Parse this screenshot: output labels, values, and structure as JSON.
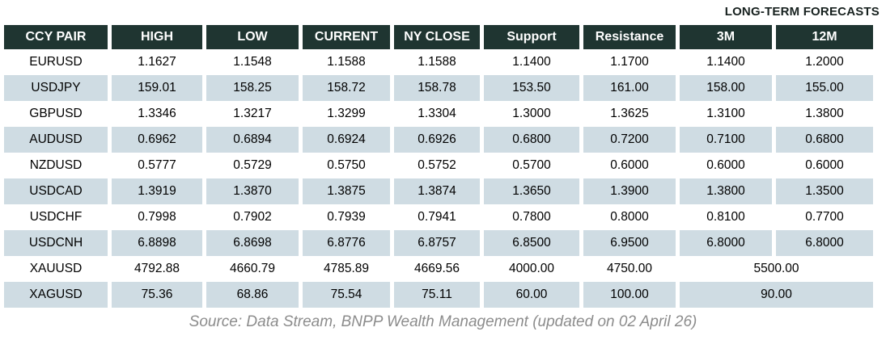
{
  "forecast_label": "LONG-TERM FORECASTS",
  "table": {
    "columns": [
      "CCY PAIR",
      "HIGH",
      "LOW",
      "CURRENT",
      "NY CLOSE",
      "Support",
      "Resistance",
      "3M",
      "12M"
    ],
    "rows": [
      {
        "pair": "EURUSD",
        "high": "1.1627",
        "low": "1.1548",
        "current": "1.1588",
        "ny_close": "1.1588",
        "support": "1.1400",
        "resistance": "1.1700",
        "m3": "1.1400",
        "m12": "1.2000"
      },
      {
        "pair": "USDJPY",
        "high": "159.01",
        "low": "158.25",
        "current": "158.72",
        "ny_close": "158.78",
        "support": "153.50",
        "resistance": "161.00",
        "m3": "158.00",
        "m12": "155.00"
      },
      {
        "pair": "GBPUSD",
        "high": "1.3346",
        "low": "1.3217",
        "current": "1.3299",
        "ny_close": "1.3304",
        "support": "1.3000",
        "resistance": "1.3625",
        "m3": "1.3100",
        "m12": "1.3800"
      },
      {
        "pair": "AUDUSD",
        "high": "0.6962",
        "low": "0.6894",
        "current": "0.6924",
        "ny_close": "0.6926",
        "support": "0.6800",
        "resistance": "0.7200",
        "m3": "0.7100",
        "m12": "0.6800"
      },
      {
        "pair": "NZDUSD",
        "high": "0.5777",
        "low": "0.5729",
        "current": "0.5750",
        "ny_close": "0.5752",
        "support": "0.5700",
        "resistance": "0.6000",
        "m3": "0.6000",
        "m12": "0.6000"
      },
      {
        "pair": "USDCAD",
        "high": "1.3919",
        "low": "1.3870",
        "current": "1.3875",
        "ny_close": "1.3874",
        "support": "1.3650",
        "resistance": "1.3900",
        "m3": "1.3800",
        "m12": "1.3500"
      },
      {
        "pair": "USDCHF",
        "high": "0.7998",
        "low": "0.7902",
        "current": "0.7939",
        "ny_close": "0.7941",
        "support": "0.7800",
        "resistance": "0.8000",
        "m3": "0.8100",
        "m12": "0.7700"
      },
      {
        "pair": "USDCNH",
        "high": "6.8898",
        "low": "6.8698",
        "current": "6.8776",
        "ny_close": "6.8757",
        "support": "6.8500",
        "resistance": "6.9500",
        "m3": "6.8000",
        "m12": "6.8000"
      },
      {
        "pair": "XAUUSD",
        "high": "4792.88",
        "low": "4660.79",
        "current": "4785.89",
        "ny_close": "4669.56",
        "support": "4000.00",
        "resistance": "4750.00",
        "forecast_merged": "5500.00"
      },
      {
        "pair": "XAGUSD",
        "high": "75.36",
        "low": "68.86",
        "current": "75.54",
        "ny_close": "75.11",
        "support": "60.00",
        "resistance": "100.00",
        "forecast_merged": "90.00"
      }
    ]
  },
  "footer": {
    "source_text": "Source: Data Stream, BNPP Wealth Management (updated on 02 April 26)"
  },
  "colors": {
    "header_bg": "#1f3531",
    "row_alt_bg": "#cfdce3",
    "forecast_label_color": "#17211f",
    "footer_color": "#8c8c8c"
  },
  "chart_data": {
    "type": "table",
    "title": "LONG-TERM FORECASTS",
    "columns": [
      "CCY PAIR",
      "HIGH",
      "LOW",
      "CURRENT",
      "NY CLOSE",
      "Support",
      "Resistance",
      "3M",
      "12M"
    ],
    "rows": [
      [
        "EURUSD",
        "1.1627",
        "1.1548",
        "1.1588",
        "1.1588",
        "1.1400",
        "1.1700",
        "1.1400",
        "1.2000"
      ],
      [
        "USDJPY",
        "159.01",
        "158.25",
        "158.72",
        "158.78",
        "153.50",
        "161.00",
        "158.00",
        "155.00"
      ],
      [
        "GBPUSD",
        "1.3346",
        "1.3217",
        "1.3299",
        "1.3304",
        "1.3000",
        "1.3625",
        "1.3100",
        "1.3800"
      ],
      [
        "AUDUSD",
        "0.6962",
        "0.6894",
        "0.6924",
        "0.6926",
        "0.6800",
        "0.7200",
        "0.7100",
        "0.6800"
      ],
      [
        "NZDUSD",
        "0.5777",
        "0.5729",
        "0.5750",
        "0.5752",
        "0.5700",
        "0.6000",
        "0.6000",
        "0.6000"
      ],
      [
        "USDCAD",
        "1.3919",
        "1.3870",
        "1.3875",
        "1.3874",
        "1.3650",
        "1.3900",
        "1.3800",
        "1.3500"
      ],
      [
        "USDCHF",
        "0.7998",
        "0.7902",
        "0.7939",
        "0.7941",
        "0.7800",
        "0.8000",
        "0.8100",
        "0.7700"
      ],
      [
        "USDCNH",
        "6.8898",
        "6.8698",
        "6.8776",
        "6.8757",
        "6.8500",
        "6.9500",
        "6.8000",
        "6.8000"
      ],
      [
        "XAUUSD",
        "4792.88",
        "4660.79",
        "4785.89",
        "4669.56",
        "4000.00",
        "4750.00",
        "5500.00"
      ],
      [
        "XAGUSD",
        "75.36",
        "68.86",
        "75.54",
        "75.11",
        "60.00",
        "100.00",
        "90.00"
      ]
    ],
    "layout_notes": "Rows XAUUSD and XAGUSD have a single merged value spanning both the 3M and 12M columns. Even rows shaded light blue-gray; dark green header row; italic gray source line below table."
  }
}
